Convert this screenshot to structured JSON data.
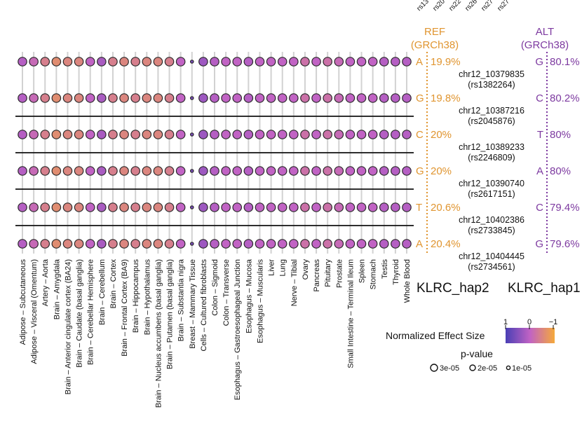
{
  "chart_data": {
    "type": "dot-matrix",
    "title": "",
    "tissues": [
      "Adipose – Subcutaneous",
      "Adipose – Visceral (Omentum)",
      "Artery – Aorta",
      "Brain – Amygdala",
      "Brain – Anterior cingulate cortex (BA24)",
      "Brain – Caudate (basal ganglia)",
      "Brain – Cerebellar Hemisphere",
      "Brain – Cerebellum",
      "Brain – Cortex",
      "Brain – Frontal Cortex (BA9)",
      "Brain – Hippocampus",
      "Brain – Hypothalamus",
      "Brain – Nucleus accumbens (basal ganglia)",
      "Brain – Putamen (basal ganglia)",
      "Brain – Substantia nigra",
      "Breast – Mammary Tissue",
      "Cells – Cultured fibroblasts",
      "Colon – Sigmoid",
      "Colon – Transverse",
      "Esophagus – Gastroesophageal Junction",
      "Esophagus – Mucosa",
      "Esophagus – Muscularis",
      "Liver",
      "Lung",
      "Nerve – Tibial",
      "Ovary",
      "Pancreas",
      "Pituitary",
      "Prostate",
      "Small Intestine – Terminal Ileum",
      "Spleen",
      "Stomach",
      "Testis",
      "Thyroid",
      "Whole Blood"
    ],
    "variants": [
      {
        "id": "chr12_10379835",
        "rsid": "(rs1382264)",
        "ref": "A",
        "ref_freq": "19.9%",
        "alt": "G",
        "alt_freq": "80.1%"
      },
      {
        "id": "chr12_10387216",
        "rsid": "(rs2045876)",
        "ref": "G",
        "ref_freq": "19.8%",
        "alt": "C",
        "alt_freq": "80.2%"
      },
      {
        "id": "chr12_10389233",
        "rsid": "(rs2246809)",
        "ref": "C",
        "ref_freq": "20%",
        "alt": "T",
        "alt_freq": "80%"
      },
      {
        "id": "chr12_10390740",
        "rsid": "(rs2617151)",
        "ref": "G",
        "ref_freq": "20%",
        "alt": "A",
        "alt_freq": "80%"
      },
      {
        "id": "chr12_10402386",
        "rsid": "(rs2733845)",
        "ref": "T",
        "ref_freq": "20.6%",
        "alt": "C",
        "alt_freq": "79.4%"
      },
      {
        "id": "chr12_10404445",
        "rsid": "(rs2734561)",
        "ref": "A",
        "ref_freq": "20.4%",
        "alt": "G",
        "alt_freq": "79.6%"
      }
    ],
    "effect_sizes": [
      [
        0.45,
        0.55,
        0.7,
        0.8,
        0.75,
        0.75,
        0.5,
        0.4,
        0.7,
        0.75,
        0.7,
        0.75,
        0.75,
        0.7,
        0.5,
        0.2,
        0.35,
        0.45,
        0.5,
        0.5,
        0.45,
        0.5,
        0.5,
        0.5,
        0.5,
        0.6,
        0.5,
        0.6,
        0.55,
        0.5,
        0.5,
        0.5,
        0.45,
        0.45,
        0.45
      ],
      [
        0.45,
        0.55,
        0.7,
        0.8,
        0.75,
        0.75,
        0.5,
        0.4,
        0.7,
        0.75,
        0.7,
        0.75,
        0.75,
        0.7,
        0.5,
        0.2,
        0.35,
        0.45,
        0.5,
        0.5,
        0.45,
        0.5,
        0.5,
        0.5,
        0.5,
        0.6,
        0.5,
        0.6,
        0.55,
        0.5,
        0.5,
        0.5,
        0.45,
        0.45,
        0.45
      ],
      [
        0.45,
        0.55,
        0.7,
        0.8,
        0.75,
        0.75,
        0.5,
        0.4,
        0.7,
        0.75,
        0.7,
        0.75,
        0.75,
        0.7,
        0.5,
        0.2,
        0.35,
        0.45,
        0.5,
        0.5,
        0.45,
        0.5,
        0.5,
        0.5,
        0.5,
        0.6,
        0.5,
        0.6,
        0.55,
        0.5,
        0.5,
        0.5,
        0.45,
        0.45,
        0.45
      ],
      [
        0.45,
        0.55,
        0.7,
        0.8,
        0.75,
        0.75,
        0.5,
        0.4,
        0.7,
        0.75,
        0.7,
        0.75,
        0.75,
        0.7,
        0.5,
        0.2,
        0.35,
        0.45,
        0.5,
        0.5,
        0.45,
        0.5,
        0.5,
        0.5,
        0.5,
        0.6,
        0.5,
        0.6,
        0.55,
        0.5,
        0.5,
        0.5,
        0.45,
        0.45,
        0.45
      ],
      [
        0.45,
        0.55,
        0.7,
        0.8,
        0.75,
        0.75,
        0.5,
        0.4,
        0.7,
        0.75,
        0.7,
        0.75,
        0.75,
        0.7,
        0.5,
        0.2,
        0.35,
        0.45,
        0.5,
        0.5,
        0.45,
        0.5,
        0.5,
        0.5,
        0.5,
        0.6,
        0.5,
        0.6,
        0.55,
        0.5,
        0.5,
        0.5,
        0.45,
        0.45,
        0.45
      ],
      [
        0.45,
        0.55,
        0.7,
        0.8,
        0.75,
        0.75,
        0.5,
        0.4,
        0.7,
        0.75,
        0.7,
        0.75,
        0.75,
        0.7,
        0.5,
        0.2,
        0.35,
        0.45,
        0.5,
        0.5,
        0.45,
        0.5,
        0.5,
        0.5,
        0.5,
        0.6,
        0.5,
        0.6,
        0.55,
        0.5,
        0.5,
        0.5,
        0.45,
        0.45,
        0.45
      ]
    ],
    "pvalue_class": [
      2,
      2,
      2,
      2,
      2,
      2,
      2,
      2,
      2,
      2,
      2,
      2,
      2,
      2,
      2,
      0,
      2,
      2,
      2,
      2,
      2,
      2,
      2,
      2,
      2,
      2,
      2,
      2,
      2,
      2,
      2,
      2,
      2,
      2,
      2
    ],
    "top_labels": [
      "rs13",
      "rs20",
      "rs22",
      "rs26",
      "rs27",
      "rs27"
    ],
    "ref_header": "REF",
    "ref_build": "(GRCh38)",
    "alt_header": "ALT",
    "alt_build": "(GRCh38)",
    "hap_left": "KLRC_hap2",
    "hap_right": "KLRC_hap1",
    "legend": {
      "color_title": "Normalized Effect Size",
      "color_ticks": [
        "1",
        "0",
        "−1"
      ],
      "size_title": "p-value",
      "size_entries": [
        "3e-05",
        "2e-05",
        "1e-05"
      ]
    },
    "colors": {
      "ref": "#e09530",
      "alt": "#7d3aa0",
      "scale_low": "#4a3fb5",
      "scale_mid": "#c163c4",
      "scale_high": "#f5a93a"
    }
  }
}
